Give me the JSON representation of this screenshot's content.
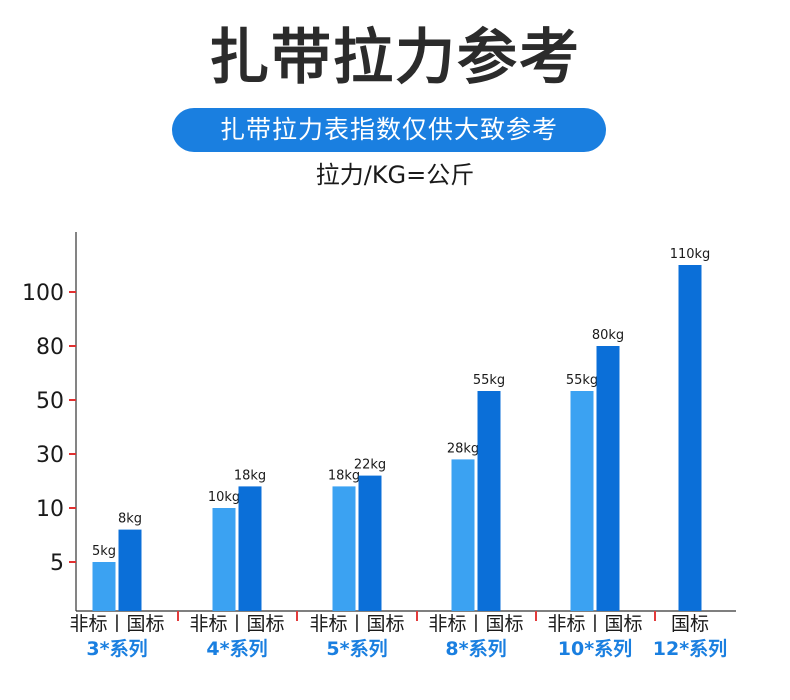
{
  "header": {
    "title": "扎带拉力参考",
    "subtitle": "扎带拉力表指数仅供大致参考",
    "unit_label": "拉力/KG=公斤"
  },
  "colors": {
    "light_bar": "#3ba2f2",
    "dark_bar": "#0b6fd8",
    "accent": "#1a7fe0",
    "tick_red": "#e23b3b"
  },
  "chart_data": {
    "type": "bar",
    "title": "扎带拉力参考",
    "ylabel": "拉力/KG=公斤",
    "y_ticks": [
      5,
      10,
      30,
      50,
      80,
      100
    ],
    "categories": [
      "3*系列",
      "4*系列",
      "5*系列",
      "8*系列",
      "10*系列",
      "12*系列"
    ],
    "category_standards": [
      "非标丨国标",
      "非标丨国标",
      "非标丨国标",
      "非标丨国标",
      "非标丨国标",
      "国标"
    ],
    "series": [
      {
        "name": "非标",
        "values": [
          5,
          10,
          18,
          28,
          55,
          null
        ],
        "labels": [
          "5kg",
          "10kg",
          "18kg",
          "28kg",
          "55kg",
          ""
        ]
      },
      {
        "name": "国标",
        "values": [
          8,
          18,
          22,
          55,
          80,
          110
        ],
        "labels": [
          "8kg",
          "18kg",
          "22kg",
          "55kg",
          "80kg",
          "110kg"
        ]
      }
    ],
    "grid": false,
    "legend": "none"
  }
}
